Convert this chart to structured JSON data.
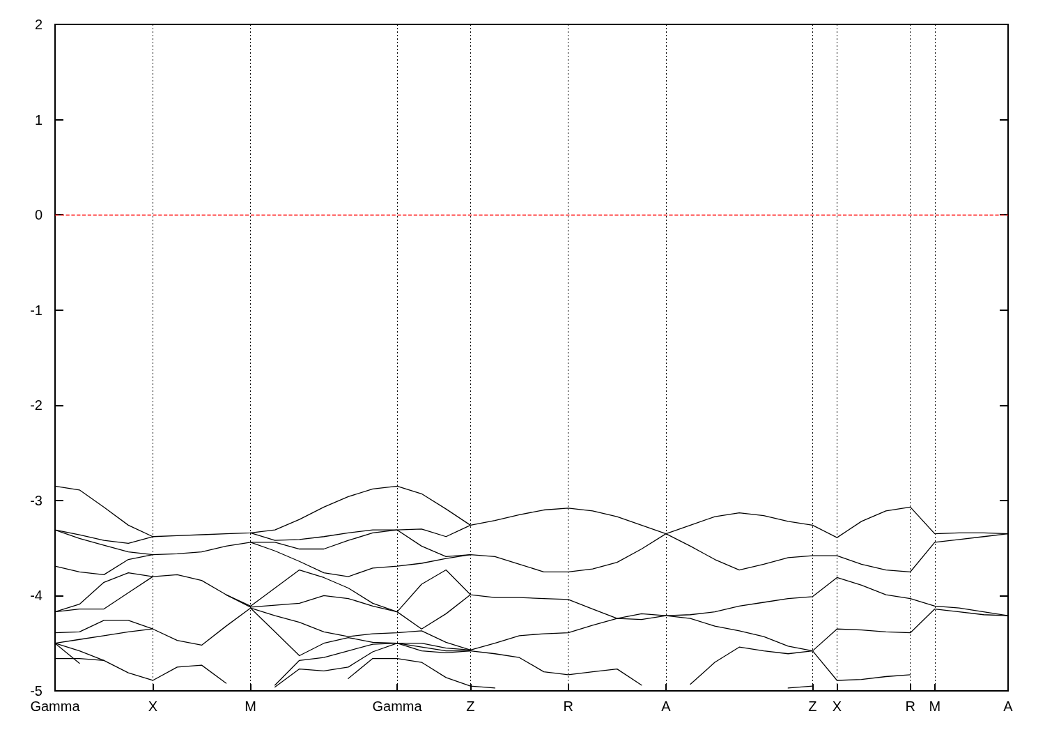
{
  "chart_data": {
    "type": "line",
    "categories": [
      "Gamma",
      null,
      null,
      null,
      "X",
      null,
      null,
      null,
      "M",
      null,
      null,
      null,
      null,
      null,
      "Gamma",
      null,
      null,
      "Z",
      null,
      null,
      null,
      "R",
      null,
      null,
      null,
      "A",
      null,
      null,
      null,
      null,
      null,
      "Z",
      "X",
      null,
      null,
      "R",
      "M",
      null,
      null,
      "A"
    ],
    "series": [
      {
        "color": "#000000",
        "values": [
          -2.85,
          -2.89,
          -3.07,
          -3.26,
          -3.38,
          -3.37,
          -3.36,
          -3.35,
          -3.34,
          -3.31,
          -3.2,
          -3.07,
          -2.96,
          -2.88,
          -2.85,
          -2.93,
          -3.09,
          -3.26,
          -3.21,
          -3.15,
          -3.1,
          -3.08,
          -3.11,
          -3.17,
          -3.26,
          -3.35,
          -3.26,
          -3.17,
          -3.13,
          -3.16,
          -3.22,
          -3.26,
          -3.39,
          -3.22,
          -3.11,
          -3.07,
          -3.35,
          -3.34,
          -3.34,
          -3.35
        ]
      },
      {
        "color": "#000000",
        "values": [
          -3.31,
          -3.36,
          -3.42,
          -3.45,
          -3.38,
          null,
          null,
          null,
          -3.34,
          -3.42,
          -3.41,
          -3.38,
          -3.34,
          -3.31,
          -3.31,
          -3.3,
          -3.38,
          -3.26,
          null,
          null,
          null,
          null,
          null,
          null,
          null,
          null,
          null,
          null,
          null,
          null,
          null,
          null,
          null,
          null,
          null,
          null,
          null,
          null,
          null,
          null
        ]
      },
      {
        "color": "#000000",
        "values": [
          -3.31,
          -3.4,
          -3.47,
          -3.54,
          -3.57,
          -3.56,
          -3.54,
          -3.48,
          -3.44,
          -3.44,
          -3.51,
          -3.51,
          -3.42,
          -3.34,
          -3.31,
          -3.48,
          -3.59,
          -3.57,
          -3.59,
          -3.67,
          -3.75,
          -3.75,
          -3.72,
          -3.65,
          -3.51,
          -3.35,
          -3.48,
          -3.62,
          -3.73,
          -3.67,
          -3.6,
          -3.58,
          -3.58,
          -3.67,
          -3.73,
          -3.75,
          -3.44,
          -3.41,
          -3.38,
          -3.35
        ]
      },
      {
        "color": "#000000",
        "values": [
          -3.69,
          -3.75,
          -3.78,
          -3.62,
          -3.57,
          null,
          null,
          null,
          -3.44,
          -3.53,
          -3.64,
          -3.76,
          -3.8,
          -3.71,
          -3.69,
          -3.66,
          -3.61,
          -3.57,
          null,
          null,
          null,
          null,
          null,
          null,
          null,
          null,
          null,
          null,
          null,
          null,
          null,
          null,
          null,
          null,
          null,
          null,
          null,
          null,
          null,
          null
        ]
      },
      {
        "color": "#000000",
        "values": [
          -4.17,
          -4.09,
          -3.86,
          -3.76,
          -3.8,
          -3.78,
          -3.84,
          -3.99,
          -4.11,
          -3.92,
          -3.73,
          -3.81,
          -3.92,
          -4.08,
          -4.17,
          -3.88,
          -3.73,
          -3.99,
          -4.02,
          -4.02,
          -4.03,
          -4.04,
          -4.14,
          -4.24,
          -4.19,
          -4.21,
          -4.2,
          -4.17,
          -4.11,
          -4.07,
          -4.03,
          -4.01,
          -3.81,
          -3.89,
          -3.99,
          -4.03,
          -4.11,
          -4.13,
          -4.17,
          -4.21
        ]
      },
      {
        "color": "#000000",
        "values": [
          -4.17,
          -4.14,
          -4.14,
          -3.97,
          -3.8,
          null,
          null,
          -3.99,
          -4.12,
          -4.1,
          -4.08,
          -4.0,
          -4.03,
          -4.11,
          -4.17,
          -4.35,
          -4.19,
          -3.99,
          null,
          null,
          null,
          null,
          null,
          null,
          null,
          null,
          null,
          null,
          null,
          null,
          null,
          null,
          null,
          null,
          null,
          null,
          null,
          null,
          null,
          null
        ]
      },
      {
        "color": "#000000",
        "values": [
          -4.39,
          -4.38,
          -4.26,
          -4.26,
          -4.35,
          -4.47,
          -4.52,
          -4.32,
          -4.13,
          -4.21,
          -4.28,
          -4.38,
          -4.43,
          -4.4,
          -4.39,
          -4.37,
          -4.49,
          -4.57,
          -4.5,
          -4.42,
          -4.4,
          -4.39,
          -4.31,
          -4.24,
          -4.25,
          -4.21,
          -4.24,
          -4.32,
          -4.37,
          -4.43,
          -4.53,
          -4.58,
          -4.35,
          -4.36,
          -4.38,
          -4.39,
          -4.14,
          -4.17,
          -4.2,
          -4.21
        ]
      },
      {
        "color": "#000000",
        "values": [
          -4.5,
          -4.46,
          -4.42,
          -4.38,
          -4.35,
          null,
          null,
          null,
          -4.13,
          -4.38,
          -4.63,
          -4.5,
          -4.44,
          -4.49,
          -4.5,
          -4.5,
          -4.55,
          -4.57,
          null,
          null,
          null,
          null,
          null,
          null,
          null,
          null,
          null,
          null,
          null,
          null,
          null,
          null,
          null,
          null,
          null,
          null,
          null,
          null,
          null,
          null
        ]
      },
      {
        "color": "#000000",
        "values": [
          -4.5,
          -4.58,
          -4.68,
          -4.81,
          -4.89,
          -4.75,
          -4.73,
          -4.92,
          null,
          -4.94,
          -4.68,
          -4.65,
          -4.58,
          -4.51,
          -4.5,
          -4.54,
          -4.58,
          -4.58,
          -4.61,
          -4.65,
          -4.8,
          -4.83,
          -4.8,
          -4.77,
          -4.94,
          null,
          -4.93,
          -4.7,
          -4.54,
          -4.58,
          -4.61,
          -4.58,
          -4.89,
          -4.88,
          -4.85,
          -4.83,
          null,
          null,
          null,
          null
        ]
      },
      {
        "color": "#000000",
        "values": [
          -4.66,
          -4.66,
          -4.68,
          null,
          null,
          null,
          null,
          null,
          null,
          -4.96,
          -4.77,
          -4.79,
          -4.75,
          -4.59,
          -4.5,
          -4.58,
          -4.6,
          -4.58,
          null,
          null,
          null,
          null,
          null,
          null,
          null,
          null,
          null,
          null,
          null,
          null,
          null,
          null,
          null,
          null,
          null,
          null,
          null,
          null,
          null,
          null
        ]
      },
      {
        "color": "#000000",
        "values": [
          -4.5,
          -4.71,
          null,
          null,
          null,
          null,
          null,
          null,
          null,
          null,
          null,
          null,
          -4.87,
          -4.66,
          -4.66,
          -4.7,
          -4.86,
          -4.95,
          -4.97,
          null,
          null,
          null,
          null,
          null,
          null,
          null,
          null,
          null,
          null,
          null,
          -4.97,
          -4.95,
          null,
          null,
          null,
          null,
          null,
          null,
          null,
          null
        ]
      }
    ],
    "ylim": [
      -5,
      2
    ],
    "yticks": [
      -5,
      -4,
      -3,
      -2,
      -1,
      0,
      1,
      2
    ],
    "grid": "x",
    "marker": "none",
    "line_style": "solid",
    "ref_lines": [
      {
        "axis": "y",
        "value": 0,
        "color": "#ff0000",
        "line_style": "dashed"
      }
    ]
  }
}
